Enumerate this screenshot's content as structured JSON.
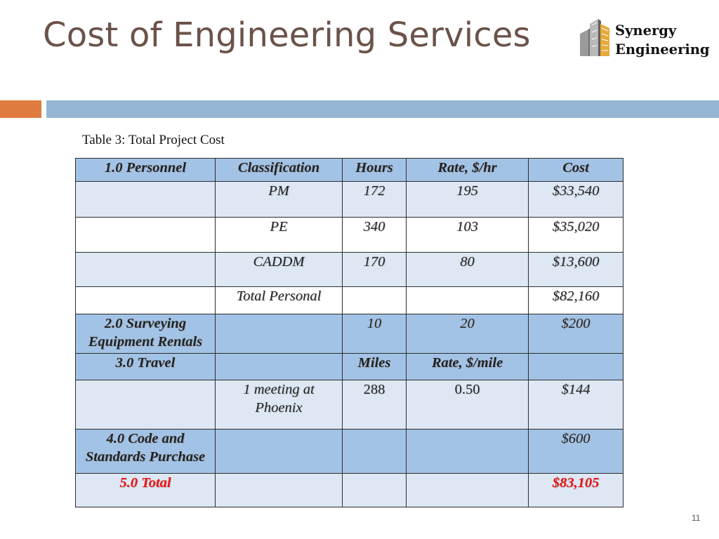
{
  "slide": {
    "title": "Cost of Engineering Services",
    "page_number": "11"
  },
  "logo": {
    "line1": "Synergy",
    "line2": "Engineering",
    "icon": "building-logo-icon"
  },
  "colors": {
    "title": "#6b5249",
    "accent_orange": "#e07b40",
    "accent_blue": "#94b6d3",
    "header_fill": "#a3c3e6",
    "row_fill": "#dde8f4",
    "total_red": "#ee1111"
  },
  "table": {
    "caption": "Table 3: Total Project Cost",
    "header": {
      "col1": "1.0 Personnel",
      "col2": "Classification",
      "col3": "Hours",
      "col4": "Rate, $/hr",
      "col5": "Cost"
    },
    "pm": {
      "classification": "PM",
      "hours": "172",
      "rate": "195",
      "cost": "$33,540"
    },
    "pe": {
      "classification": "PE",
      "hours": "340",
      "rate": "103",
      "cost": "$35,020"
    },
    "caddm": {
      "classification": "CADDM",
      "hours": "170",
      "rate": "80",
      "cost": "$13,600"
    },
    "total_personal": {
      "label": "Total Personal",
      "cost": "$82,160"
    },
    "surveying": {
      "label_line1": "2.0 Surveying",
      "label_line2": "Equipment Rentals",
      "hours": "10",
      "rate": "20",
      "cost": "$200"
    },
    "travel_header": {
      "label": "3.0 Travel",
      "units": "Miles",
      "rate_label": "Rate, $/mile"
    },
    "travel": {
      "desc_line1": "1 meeting at",
      "desc_line2": "Phoenix",
      "miles": "288",
      "rate": "0.50",
      "cost": "$144"
    },
    "code": {
      "label_line1": "4.0 Code and",
      "label_line2": "Standards Purchase",
      "cost": "$600"
    },
    "total": {
      "label": "5.0 Total",
      "cost": "$83,105"
    }
  }
}
